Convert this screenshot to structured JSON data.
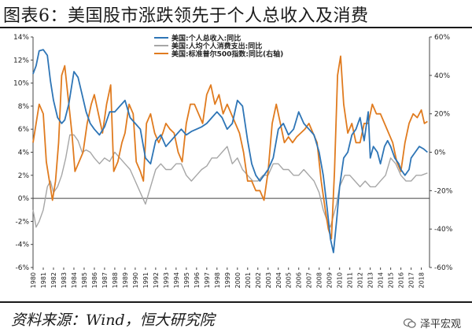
{
  "header": {
    "title": "图表6：美国股市涨跌领先于个人总收入及消费"
  },
  "footer": {
    "source": "资料来源：Wind，恒大研究院",
    "brand": "泽平宏观"
  },
  "colors": {
    "income": "#2e75b6",
    "consumption": "#a6a6a6",
    "sp500": "#e07b1f"
  },
  "chart_data": {
    "type": "line",
    "x_ticks": [
      "1980",
      "1981",
      "1982",
      "1983",
      "1984",
      "1985",
      "1986",
      "1987",
      "1988",
      "1989",
      "1990",
      "1991",
      "1992",
      "1993",
      "1994",
      "1995",
      "1996",
      "1997",
      "1998",
      "1999",
      "2000",
      "2001",
      "2002",
      "2003",
      "2004",
      "2005",
      "2006",
      "2007",
      "2008",
      "2009",
      "2010",
      "2011",
      "2012",
      "2013",
      "2014",
      "2015",
      "2016",
      "2017",
      "2018"
    ],
    "xlim": [
      1980,
      2018.8
    ],
    "y_left": {
      "ylim": [
        -6,
        14
      ],
      "ticks": [
        -6,
        -4,
        -2,
        0,
        2,
        4,
        6,
        8,
        10,
        12,
        14
      ],
      "tick_labels": [
        "-6%",
        "-4%",
        "-2%",
        "0%",
        "2%",
        "4%",
        "6%",
        "8%",
        "10%",
        "12%",
        "14%"
      ]
    },
    "y_right": {
      "ylim": [
        -60,
        60
      ],
      "ticks": [
        -60,
        -40,
        -20,
        0,
        20,
        40,
        60
      ],
      "tick_labels": [
        "-60%",
        "-40%",
        "-20%",
        "0%",
        "20%",
        "40%",
        "60%"
      ]
    },
    "grid": false,
    "legend_position": "top-center",
    "series": [
      {
        "name": "美国:个人总收入:同比",
        "axis": "left",
        "color": "#2e75b6",
        "x": [
          1980,
          1980.3,
          1980.6,
          1981,
          1981.4,
          1981.7,
          1982,
          1982.4,
          1982.8,
          1983.1,
          1983.5,
          1984,
          1984.4,
          1984.8,
          1985.2,
          1985.6,
          1986,
          1986.5,
          1987,
          1987.5,
          1988,
          1988.5,
          1989,
          1989.5,
          1990,
          1990.5,
          1991,
          1991.5,
          1992,
          1992.5,
          1993,
          1993.5,
          1994,
          1994.5,
          1995,
          1995.5,
          1996,
          1996.5,
          1997,
          1997.5,
          1998,
          1998.5,
          1999,
          1999.5,
          2000,
          2000.5,
          2001,
          2001.4,
          2001.8,
          2002.2,
          2002.6,
          2003,
          2003.5,
          2004,
          2004.5,
          2005,
          2005.5,
          2006,
          2006.5,
          2007,
          2007.5,
          2008,
          2008.4,
          2008.8,
          2009.1,
          2009.4,
          2009.7,
          2010,
          2010.4,
          2010.8,
          2011.2,
          2011.6,
          2012,
          2012.4,
          2012.8,
          2013,
          2013.3,
          2013.7,
          2014,
          2014.4,
          2014.7,
          2015,
          2015.4,
          2015.8,
          2016,
          2016.4,
          2016.8,
          2017,
          2017.4,
          2017.8,
          2018.2,
          2018.6
        ],
        "y": [
          10.8,
          11.5,
          12.8,
          12.9,
          12.4,
          10.2,
          8.5,
          7.0,
          6.5,
          6.8,
          8.2,
          11.0,
          10.5,
          9.0,
          7.5,
          6.5,
          6.0,
          5.5,
          6.2,
          7.5,
          7.5,
          8.0,
          8.5,
          7.0,
          6.5,
          6.0,
          3.5,
          3.0,
          5.0,
          5.5,
          4.5,
          5.0,
          5.5,
          6.0,
          5.5,
          5.8,
          6.0,
          6.2,
          6.5,
          7.0,
          7.5,
          7.0,
          6.0,
          6.5,
          8.5,
          8.0,
          5.0,
          3.0,
          2.0,
          1.5,
          2.0,
          2.5,
          3.5,
          6.0,
          6.5,
          5.5,
          6.0,
          7.5,
          6.5,
          6.0,
          5.5,
          4.0,
          2.0,
          -1.0,
          -3.5,
          -4.7,
          -2.0,
          1.0,
          3.5,
          4.0,
          5.5,
          6.0,
          7.0,
          5.0,
          7.5,
          3.5,
          4.5,
          4.0,
          3.0,
          4.5,
          5.0,
          4.5,
          3.5,
          3.0,
          2.5,
          2.0,
          2.5,
          3.5,
          4.0,
          4.5,
          4.3,
          4.0
        ]
      },
      {
        "name": "美国:人均个人消费支出:同比",
        "axis": "left",
        "color": "#a6a6a6",
        "x": [
          1980,
          1980.3,
          1980.6,
          1981,
          1981.4,
          1981.7,
          1982,
          1982.4,
          1982.8,
          1983.2,
          1983.6,
          1984,
          1984.4,
          1984.8,
          1985.2,
          1985.6,
          1986,
          1986.5,
          1987,
          1987.5,
          1988,
          1988.5,
          1989,
          1989.5,
          1990,
          1990.5,
          1991,
          1991.5,
          1992,
          1992.5,
          1993,
          1993.5,
          1994,
          1994.5,
          1995,
          1995.5,
          1996,
          1996.5,
          1997,
          1997.5,
          1998,
          1998.5,
          1999,
          1999.5,
          2000,
          2000.5,
          2001,
          2001.5,
          2002,
          2002.5,
          2003,
          2003.5,
          2004,
          2004.5,
          2005,
          2005.5,
          2006,
          2006.5,
          2007,
          2007.5,
          2008,
          2008.4,
          2008.8,
          2009.1,
          2009.4,
          2009.7,
          2010,
          2010.5,
          2011,
          2011.5,
          2012,
          2012.5,
          2013,
          2013.5,
          2014,
          2014.5,
          2015,
          2015.5,
          2016,
          2016.5,
          2017,
          2017.5,
          2018,
          2018.6
        ],
        "y": [
          -1.0,
          -2.5,
          -2.0,
          -1.0,
          1.0,
          1.5,
          0.5,
          1.0,
          2.0,
          3.5,
          5.5,
          5.5,
          5.0,
          4.0,
          4.2,
          4.0,
          3.5,
          3.0,
          3.5,
          3.2,
          4.0,
          3.5,
          3.0,
          2.5,
          1.5,
          0.5,
          -0.5,
          1.0,
          2.5,
          3.0,
          2.5,
          2.5,
          3.0,
          3.0,
          2.0,
          1.5,
          2.0,
          2.5,
          2.8,
          3.5,
          3.5,
          4.0,
          4.5,
          3.0,
          3.5,
          2.5,
          2.0,
          1.5,
          1.5,
          2.0,
          2.0,
          3.0,
          3.0,
          2.5,
          2.5,
          2.0,
          2.0,
          2.5,
          2.0,
          1.5,
          0.5,
          -1.0,
          -2.0,
          -2.5,
          -1.5,
          -0.5,
          1.0,
          2.0,
          2.0,
          1.5,
          1.0,
          1.5,
          1.0,
          1.0,
          1.5,
          2.0,
          3.5,
          3.0,
          2.0,
          1.5,
          1.5,
          2.0,
          2.0,
          2.2
        ]
      },
      {
        "name": "美国:标准普尔500指数:同比(右轴)",
        "axis": "right",
        "color": "#e07b1f",
        "x": [
          1980,
          1980.3,
          1980.6,
          1981,
          1981.3,
          1981.6,
          1981.9,
          1982.2,
          1982.5,
          1982.8,
          1983.1,
          1983.4,
          1983.8,
          1984.1,
          1984.5,
          1984.9,
          1985.3,
          1985.7,
          1986,
          1986.4,
          1986.8,
          1987.2,
          1987.6,
          1987.9,
          1988.3,
          1988.7,
          1989,
          1989.4,
          1989.8,
          1990.1,
          1990.5,
          1990.8,
          1991.1,
          1991.5,
          1991.9,
          1992.3,
          1992.7,
          1993,
          1993.4,
          1993.8,
          1994.2,
          1994.6,
          1995,
          1995.4,
          1995.8,
          1996.2,
          1996.6,
          1997,
          1997.4,
          1997.8,
          1998.2,
          1998.6,
          1999,
          1999.4,
          1999.8,
          2000.2,
          2000.6,
          2001,
          2001.4,
          2001.8,
          2002.2,
          2002.6,
          2003,
          2003.4,
          2003.8,
          2004.2,
          2004.6,
          2005,
          2005.4,
          2005.8,
          2006.2,
          2006.6,
          2007,
          2007.4,
          2007.8,
          2008.2,
          2008.6,
          2008.9,
          2009.2,
          2009.5,
          2009.8,
          2010.1,
          2010.4,
          2010.8,
          2011.2,
          2011.6,
          2012,
          2012.4,
          2012.8,
          2013.2,
          2013.6,
          2014,
          2014.4,
          2014.8,
          2015.2,
          2015.6,
          2016,
          2016.4,
          2016.8,
          2017.2,
          2017.6,
          2018,
          2018.3,
          2018.6
        ],
        "y": [
          5,
          15,
          25,
          20,
          -5,
          -15,
          -25,
          -15,
          5,
          40,
          45,
          30,
          10,
          -10,
          -5,
          0,
          15,
          25,
          30,
          20,
          10,
          25,
          35,
          -10,
          -5,
          5,
          10,
          25,
          20,
          -5,
          -10,
          -15,
          15,
          20,
          10,
          5,
          10,
          15,
          12,
          10,
          0,
          -5,
          15,
          25,
          25,
          20,
          15,
          30,
          35,
          25,
          30,
          20,
          25,
          20,
          15,
          10,
          0,
          -15,
          -15,
          -20,
          -20,
          -25,
          -10,
          15,
          25,
          15,
          5,
          8,
          5,
          8,
          10,
          12,
          15,
          10,
          5,
          -15,
          -30,
          -40,
          -45,
          -10,
          40,
          50,
          25,
          10,
          15,
          5,
          5,
          15,
          15,
          25,
          20,
          20,
          15,
          10,
          5,
          -5,
          -10,
          5,
          15,
          20,
          18,
          22,
          15,
          16
        ]
      }
    ]
  }
}
